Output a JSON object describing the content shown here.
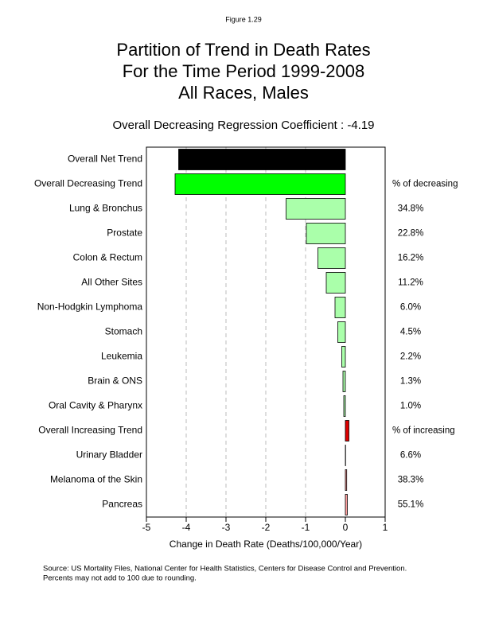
{
  "chart_data": {
    "type": "bar",
    "orientation": "horizontal",
    "figure_label": "Figure 1.29",
    "title_lines": [
      "Partition of Trend in Death Rates",
      "For the Time Period 1999-2008",
      "All Races, Males"
    ],
    "subtitle": "Overall Decreasing Regression Coefficient : -4.19",
    "x_label": "Change in Death Rate (Deaths/100,000/Year)",
    "categories": [
      "Overall Net Trend",
      "Overall Decreasing Trend",
      "Lung & Bronchus",
      "Prostate",
      "Colon & Rectum",
      "All Other Sites",
      "Non-Hodgkin Lymphoma",
      "Stomach",
      "Leukemia",
      "Brain & ONS",
      "Oral Cavity & Pharynx",
      "Overall Increasing Trend",
      "Urinary Bladder",
      "Melanoma of the Skin",
      "Pancreas"
    ],
    "values": [
      -4.19,
      -4.28,
      -1.49,
      -0.98,
      -0.69,
      -0.48,
      -0.26,
      -0.19,
      -0.09,
      -0.06,
      -0.04,
      0.09,
      0.006,
      0.034,
      0.05
    ],
    "bar_colors": [
      "#000000",
      "#00ff00",
      "#aaffaa",
      "#aaffaa",
      "#aaffaa",
      "#aaffaa",
      "#aaffaa",
      "#aaffaa",
      "#aaffaa",
      "#aaffaa",
      "#aaffaa",
      "#dd0000",
      "#ff9f9f",
      "#ff9f9f",
      "#ff9f9f"
    ],
    "right_labels": [
      null,
      "% of decreasing",
      "34.8%",
      "22.8%",
      "16.2%",
      "11.2%",
      "6.0%",
      "4.5%",
      "2.2%",
      "1.3%",
      "1.0%",
      "% of increasing",
      "6.6%",
      "38.3%",
      "55.1%"
    ],
    "xlim": [
      -5,
      1
    ],
    "xticks": [
      -5,
      -4,
      -3,
      -2,
      -1,
      0,
      1
    ],
    "grid": true,
    "footnote_lines": [
      "Source:  US Mortality Files, National Center for Health Statistics, Centers for Disease Control and Prevention.",
      "Percents may not add to 100 due to rounding."
    ]
  }
}
